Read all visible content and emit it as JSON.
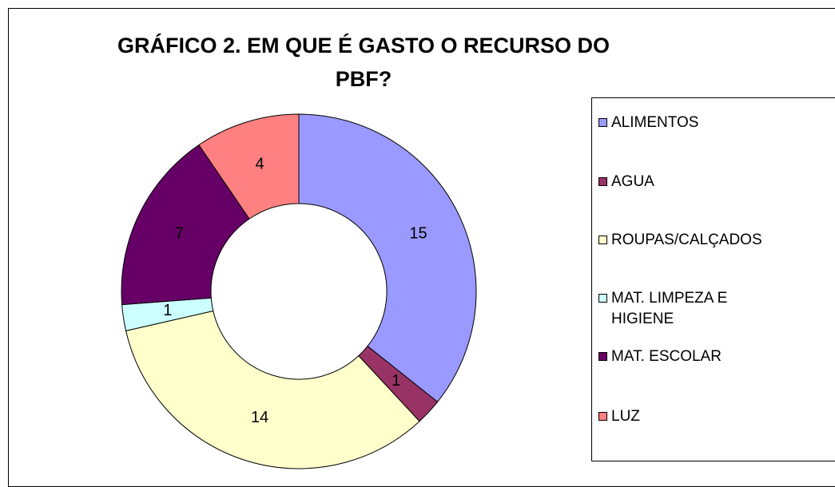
{
  "chart_data": {
    "type": "donut",
    "title": "GRÁFICO 2. EM QUE É GASTO O RECURSO DO PBF?",
    "categories": [
      "ALIMENTOS",
      "AGUA",
      "ROUPAS/CALÇADOS",
      "MAT. LIMPEZA E HIGIENE",
      "MAT. ESCOLAR",
      "LUZ"
    ],
    "values": [
      15,
      1,
      14,
      1,
      7,
      4
    ],
    "colors": [
      "#9999ff",
      "#993366",
      "#ffffcc",
      "#ccffff",
      "#660066",
      "#ff8080"
    ],
    "legend": "right"
  }
}
